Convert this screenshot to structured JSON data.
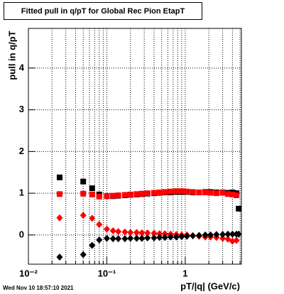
{
  "chart_data": {
    "type": "scatter",
    "title": "Fitted pull in q/pT for Global Rec Pion EtapT",
    "x_label": "pT/|q| (GeV/c)",
    "y_label": "pull in q/pT",
    "timestamp": "Wed Nov 10 18:57:10 2021",
    "x_log": true,
    "grid": true,
    "xlim": [
      0.01,
      5.2
    ],
    "ylim": [
      -0.7,
      4.95
    ],
    "xticks": [
      {
        "value": 0.01,
        "label": "10⁻²"
      },
      {
        "value": 0.1,
        "label": "10⁻¹"
      },
      1
    ],
    "xminorticks": [
      0.02,
      0.03,
      0.04,
      0.05,
      0.06,
      0.07,
      0.08,
      0.09,
      0.2,
      0.3,
      0.4,
      0.5,
      0.6,
      0.7,
      0.8,
      0.9,
      2,
      3,
      4,
      5
    ],
    "yticks": [
      0,
      1,
      2,
      3,
      4
    ],
    "x": [
      0.025,
      0.05,
      0.065,
      0.08,
      0.1,
      0.12,
      0.14,
      0.17,
      0.2,
      0.24,
      0.28,
      0.33,
      0.4,
      0.47,
      0.55,
      0.65,
      0.77,
      0.9,
      1.05,
      1.25,
      1.5,
      1.8,
      2.1,
      2.5,
      3.0,
      3.5,
      4.0,
      4.5,
      4.8
    ],
    "series": [
      {
        "color": "#000000",
        "marker": "square",
        "values": [
          1.38,
          1.28,
          1.12,
          0.97,
          0.93,
          0.93,
          0.94,
          0.95,
          0.96,
          0.97,
          0.98,
          0.99,
          1.0,
          1.01,
          1.02,
          1.02,
          1.03,
          1.03,
          1.03,
          1.02,
          1.02,
          1.03,
          1.03,
          1.02,
          1.02,
          1.01,
          1.02,
          1.0,
          0.63
        ]
      },
      {
        "color": "#ff0000",
        "marker": "square",
        "values": [
          0.98,
          0.99,
          0.97,
          0.92,
          0.93,
          0.94,
          0.95,
          0.96,
          0.97,
          0.98,
          0.99,
          1.0,
          1.01,
          1.02,
          1.03,
          1.04,
          1.05,
          1.05,
          1.04,
          1.03,
          1.02,
          1.02,
          1.01,
          1.0,
          1.01,
          0.98,
          0.97,
          0.95,
          null
        ]
      },
      {
        "color": "#ff0000",
        "marker": "diamond",
        "values": [
          0.41,
          0.47,
          0.4,
          0.25,
          0.14,
          0.1,
          0.08,
          0.07,
          0.06,
          0.06,
          0.05,
          0.05,
          0.04,
          0.03,
          0.03,
          0.02,
          0.01,
          0.0,
          0.0,
          -0.02,
          -0.03,
          -0.05,
          -0.05,
          -0.06,
          -0.08,
          -0.1,
          -0.15,
          -0.13,
          null
        ]
      },
      {
        "color": "#000000",
        "marker": "diamond",
        "values": [
          -0.53,
          -0.47,
          -0.25,
          -0.12,
          -0.08,
          -0.09,
          -0.09,
          -0.09,
          -0.08,
          -0.08,
          -0.08,
          -0.07,
          -0.07,
          -0.06,
          -0.06,
          -0.05,
          -0.05,
          -0.04,
          -0.03,
          -0.02,
          -0.01,
          0.0,
          0.0,
          0.01,
          0.01,
          0.02,
          0.02,
          0.02,
          0.02
        ]
      }
    ]
  }
}
